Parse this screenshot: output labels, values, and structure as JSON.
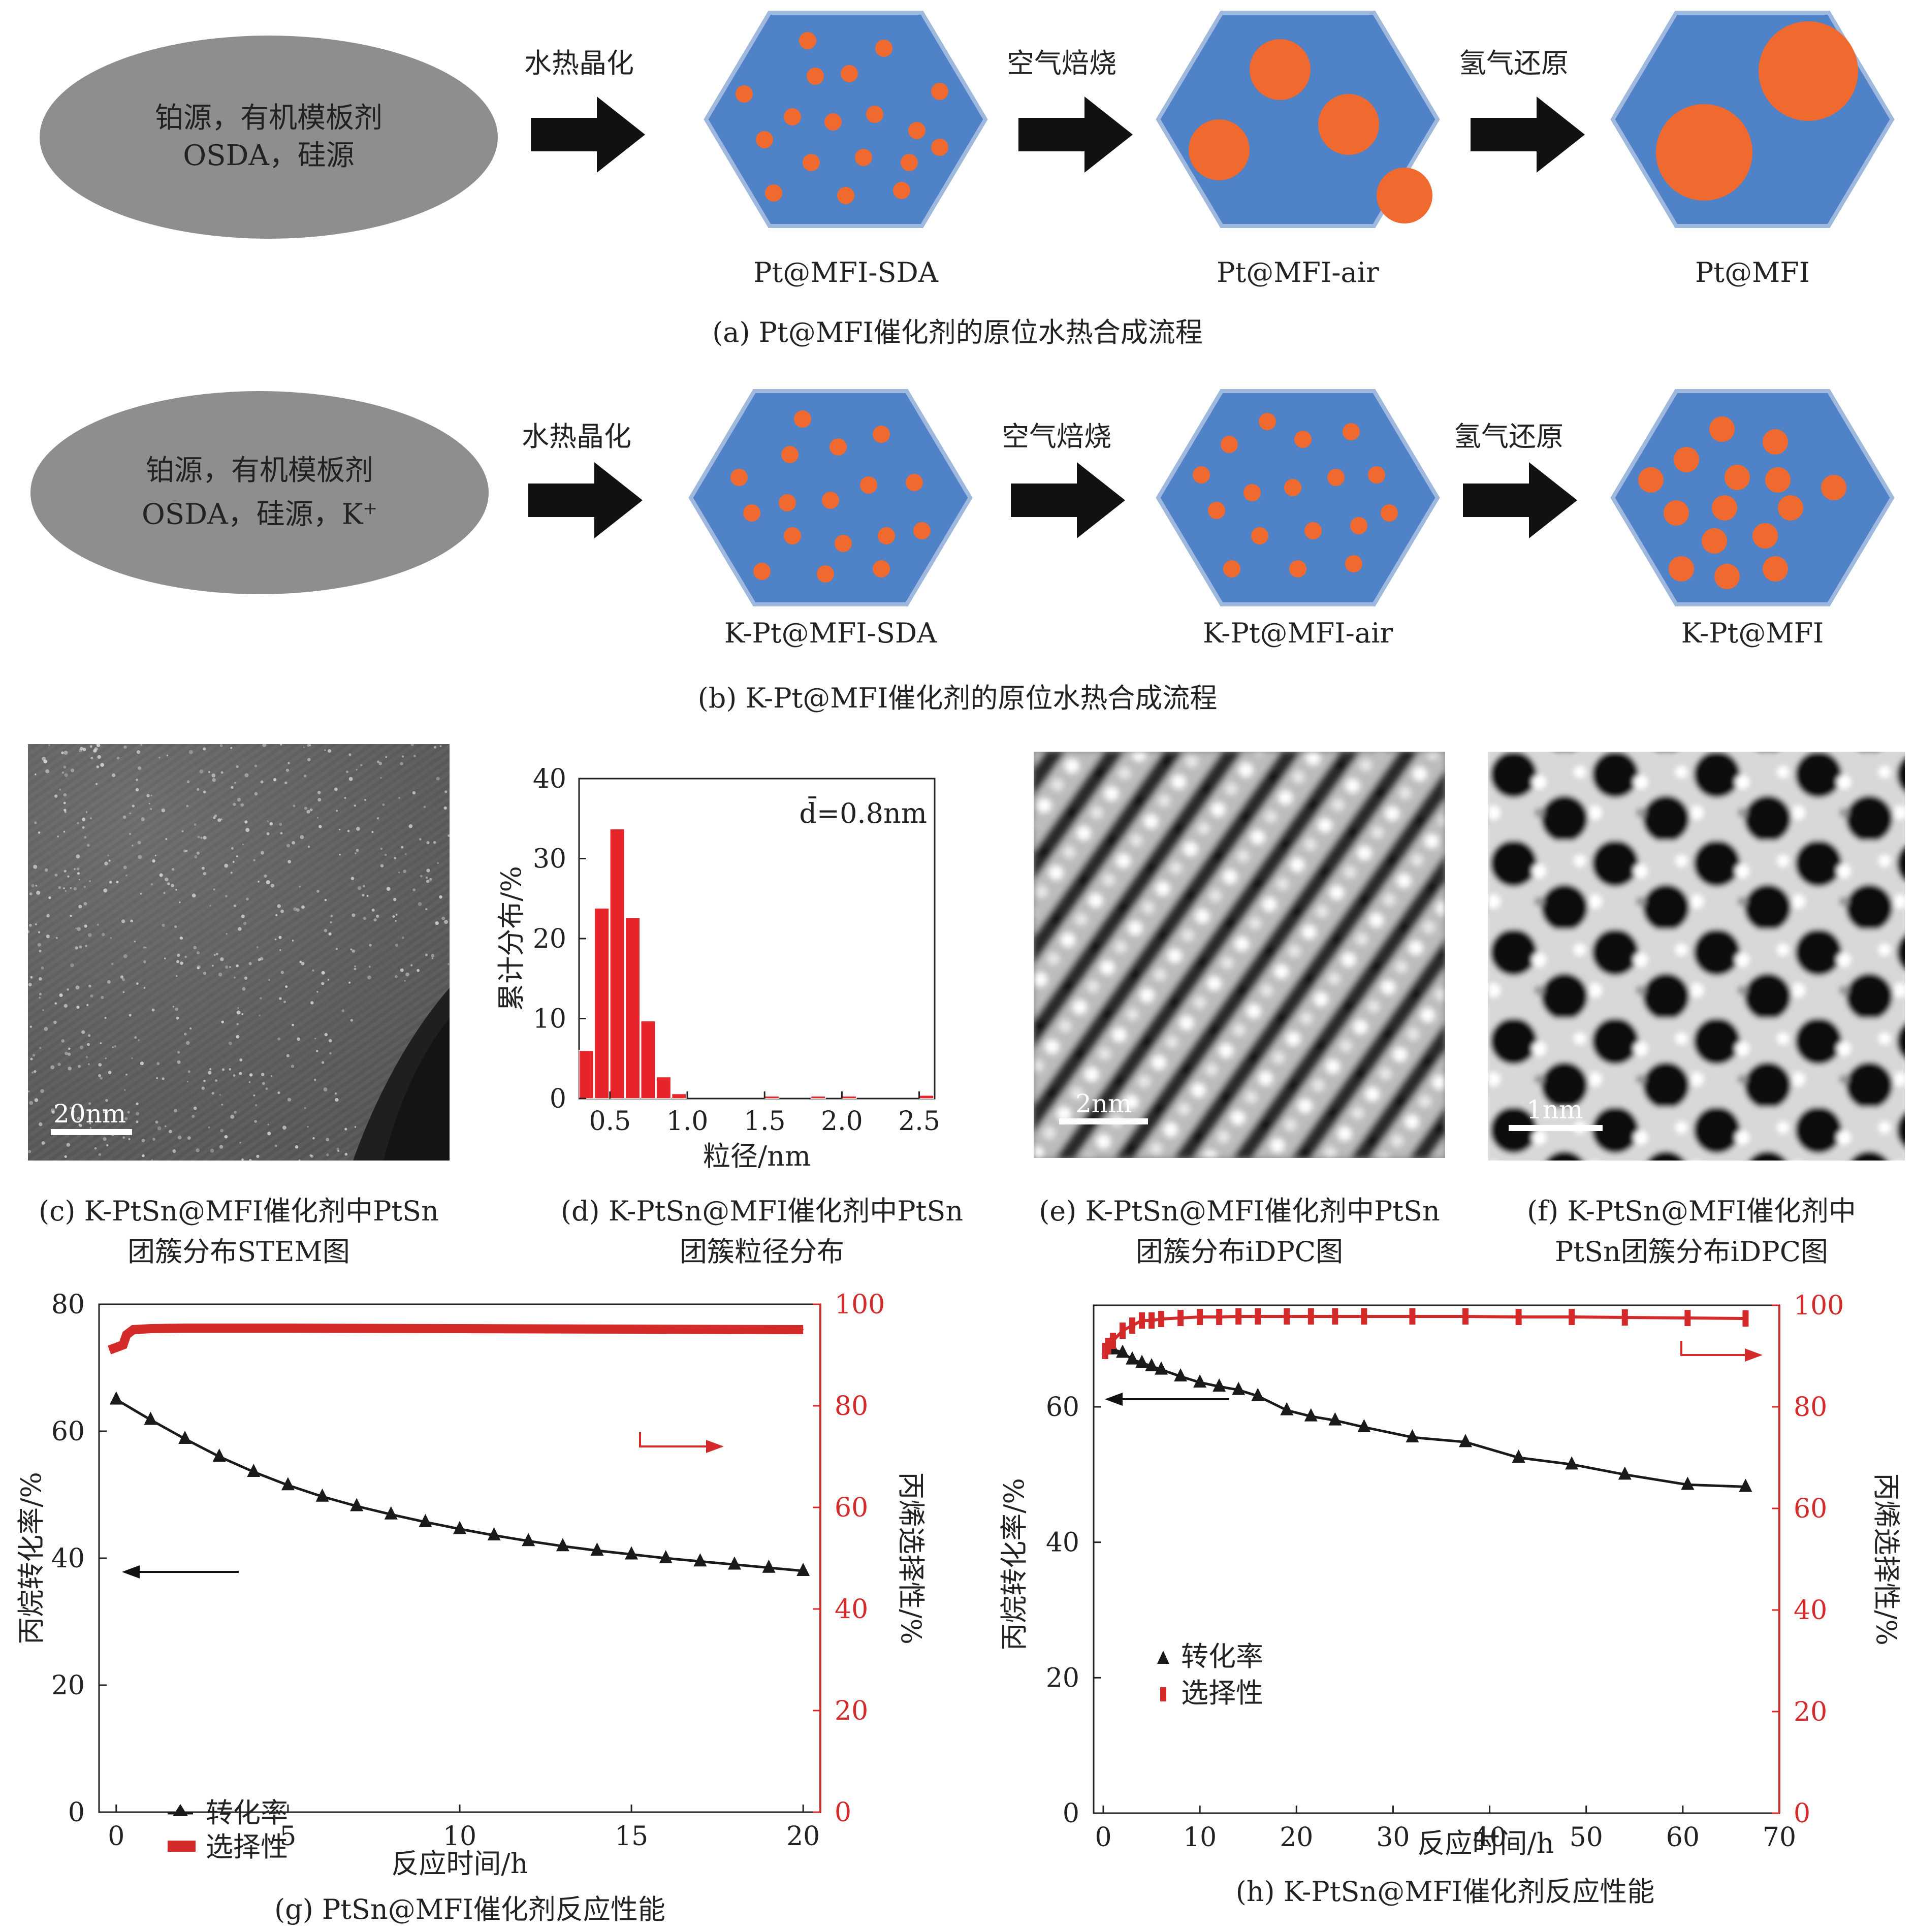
{
  "panel_a": {
    "oval_line1": "铂源，有机模板剂",
    "oval_line2": "OSDA，硅源",
    "step1": "水热晶化",
    "step2": "空气焙烧",
    "step3": "氢气还原",
    "crystal1": "Pt@MFI-SDA",
    "crystal2": "Pt@MFI-air",
    "crystal3": "Pt@MFI",
    "caption": "(a) Pt@MFI催化剂的原位水热合成流程"
  },
  "panel_b": {
    "oval_line1": "铂源，有机模板剂",
    "oval_line2": "OSDA，硅源，K",
    "oval_sup": "+",
    "step1": "水热晶化",
    "step2": "空气焙烧",
    "step3": "氢气还原",
    "crystal1": "K-Pt@MFI-SDA",
    "crystal2": "K-Pt@MFI-air",
    "crystal3": "K-Pt@MFI",
    "caption": "(b) K-Pt@MFI催化剂的原位水热合成流程"
  },
  "panel_c": {
    "scale": "20nm",
    "caption_line1": "(c) K-PtSn@MFI催化剂中PtSn",
    "caption_line2": "团簇分布STEM图"
  },
  "panel_e": {
    "scale": "2nm",
    "caption_line1": "(e) K-PtSn@MFI催化剂中PtSn",
    "caption_line2": "团簇分布iDPC图"
  },
  "panel_f": {
    "scale": "1nm",
    "caption_line1": "(f) K-PtSn@MFI催化剂中",
    "caption_line2": "PtSn团簇分布iDPC图"
  },
  "panel_d": {
    "caption_line1": "(d) K-PtSn@MFI催化剂中PtSn",
    "caption_line2": "团簇粒径分布"
  },
  "panel_g": {
    "caption": "(g) PtSn@MFI催化剂反应性能"
  },
  "panel_h": {
    "caption": "(h) K-PtSn@MFI催化剂反应性能"
  },
  "colors": {
    "crystal": "#4f82c6",
    "particle": "#f06a2f",
    "bar": "#e8242b",
    "selectivity": "#d42a2a",
    "conversion": "#1a1a1a",
    "oval": "#8f8e8f"
  },
  "chart_data": [
    {
      "id": "d",
      "type": "bar",
      "xlabel": "粒径/nm",
      "ylabel": "累计分布/%",
      "annotation": "d̄=0.8nm",
      "xlim": [
        0.3,
        2.6
      ],
      "ylim": [
        0,
        40
      ],
      "xticks": [
        "0.5",
        "1.0",
        "1.5",
        "2.0",
        "2.5"
      ],
      "yticks": [
        "0",
        "10",
        "20",
        "30",
        "40"
      ],
      "bin_width": 0.1,
      "x": [
        0.35,
        0.45,
        0.55,
        0.65,
        0.75,
        0.85,
        0.95,
        1.55,
        1.85,
        2.05,
        2.55
      ],
      "values": [
        6,
        23.8,
        33.7,
        22.6,
        9.7,
        2.7,
        0.6,
        0.3,
        0.3,
        0.3,
        0.4
      ]
    },
    {
      "id": "g",
      "type": "line",
      "xlabel": "反应时间/h",
      "ylabel": "丙烷转化率/%",
      "y2label": "丙烯选择性/%",
      "xlim": [
        -0.5,
        20.5
      ],
      "ylim": [
        0,
        80
      ],
      "y2lim": [
        0,
        100
      ],
      "xticks": [
        "0",
        "5",
        "10",
        "15",
        "20"
      ],
      "yticks": [
        "0",
        "20",
        "40",
        "60",
        "80"
      ],
      "y2ticks": [
        "0",
        "20",
        "40",
        "60",
        "80",
        "100"
      ],
      "legend": [
        "转化率",
        "选择性"
      ],
      "series": [
        {
          "name": "转化率",
          "axis": "left",
          "x": [
            0,
            1,
            2,
            3,
            4,
            5,
            6,
            7,
            8,
            9,
            10,
            11,
            12,
            13,
            14,
            15,
            16,
            17,
            18,
            19,
            20
          ],
          "values": [
            65,
            61.8,
            58.8,
            56,
            53.6,
            51.5,
            49.7,
            48.2,
            46.9,
            45.7,
            44.6,
            43.6,
            42.7,
            41.9,
            41.2,
            40.6,
            40,
            39.5,
            39,
            38.5,
            38
          ]
        },
        {
          "name": "选择性",
          "axis": "right",
          "x": [
            -0.2,
            0.2,
            0.3,
            0.5,
            1,
            2,
            5,
            10,
            15,
            20
          ],
          "values": [
            91,
            92,
            94,
            95,
            95.2,
            95.3,
            95.3,
            95.2,
            95.1,
            95
          ]
        }
      ]
    },
    {
      "id": "h",
      "type": "line",
      "xlabel": "反应时间/h",
      "ylabel": "丙烷转化率/%",
      "y2label": "丙烯选择性/%",
      "xlim": [
        -1,
        70
      ],
      "ylim": [
        0,
        75
      ],
      "y2lim": [
        0,
        100
      ],
      "xticks": [
        "0",
        "10",
        "20",
        "30",
        "40",
        "50",
        "60",
        "70"
      ],
      "yticks": [
        "0",
        "20",
        "40",
        "60"
      ],
      "y2ticks": [
        "0",
        "20",
        "40",
        "60",
        "80",
        "100"
      ],
      "legend": [
        "转化率",
        "选择性"
      ],
      "series": [
        {
          "name": "转化率",
          "axis": "left",
          "x": [
            0.5,
            1,
            2,
            3,
            4,
            5,
            6,
            8,
            10,
            12,
            14,
            16,
            19,
            21.5,
            24,
            27,
            32,
            37.5,
            43,
            48.5,
            54,
            60.5,
            66.5
          ],
          "values": [
            68.5,
            68.5,
            68,
            67,
            66.5,
            66,
            65.5,
            64.5,
            63.6,
            63,
            62.5,
            61.6,
            59.5,
            58.6,
            58,
            57,
            55.5,
            54.8,
            52.5,
            51.5,
            50,
            48.5,
            48.2
          ]
        },
        {
          "name": "选择性",
          "axis": "right",
          "x": [
            0.2,
            0.5,
            1,
            2,
            3,
            4,
            5,
            6,
            8,
            10,
            12,
            14,
            16,
            19,
            21.5,
            24,
            27,
            32,
            37.5,
            43,
            48.5,
            54,
            60.5,
            66.5
          ],
          "values": [
            91,
            92,
            93,
            95,
            96,
            97,
            97,
            97.3,
            97.5,
            97.7,
            97.7,
            97.8,
            97.8,
            97.8,
            97.8,
            97.8,
            97.8,
            97.8,
            97.8,
            97.7,
            97.7,
            97.6,
            97.5,
            97.4
          ]
        }
      ]
    }
  ]
}
